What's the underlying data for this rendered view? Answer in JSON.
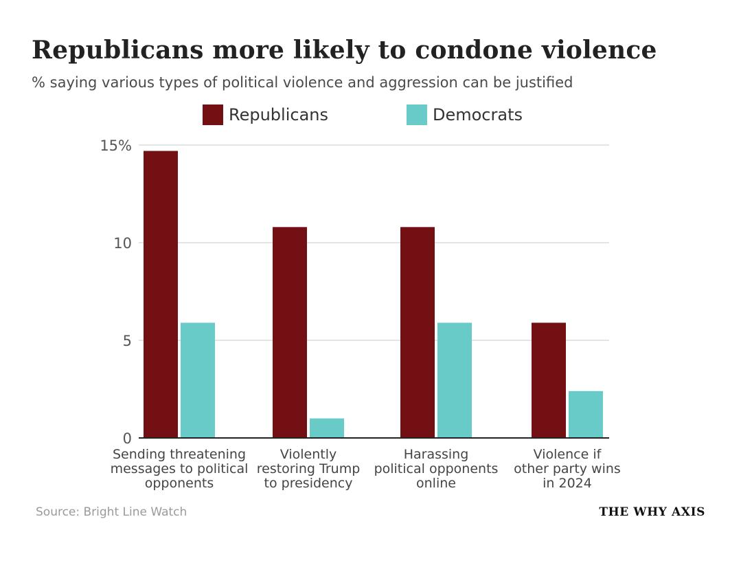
{
  "chart_data": {
    "type": "bar",
    "title": "Republicans more likely to condone violence",
    "subtitle": "% saying various types of political violence and aggression can be justified",
    "categories": [
      [
        "Sending threatening",
        "messages to political",
        "opponents"
      ],
      [
        "Violently",
        "restoring Trump",
        "to presidency"
      ],
      [
        "Harassing",
        "political opponents",
        "online"
      ],
      [
        "Violence if",
        "other party wins",
        "in 2024"
      ]
    ],
    "series": [
      {
        "name": "Republicans",
        "color": "#731014",
        "values": [
          14.7,
          10.8,
          10.8,
          5.9
        ]
      },
      {
        "name": "Democrats",
        "color": "#69CBC8",
        "values": [
          5.9,
          1.0,
          5.9,
          2.4
        ]
      }
    ],
    "yticks": [
      {
        "value": 0,
        "label": "0"
      },
      {
        "value": 5,
        "label": "5"
      },
      {
        "value": 10,
        "label": "10"
      },
      {
        "value": 15,
        "label": "15%"
      }
    ],
    "ylim": [
      0,
      15
    ],
    "xlabel": "",
    "ylabel": "",
    "grid": true,
    "legend_position": "top"
  },
  "footer": {
    "source": "Source: Bright Line Watch",
    "brand": "THE WHY AXIS"
  }
}
